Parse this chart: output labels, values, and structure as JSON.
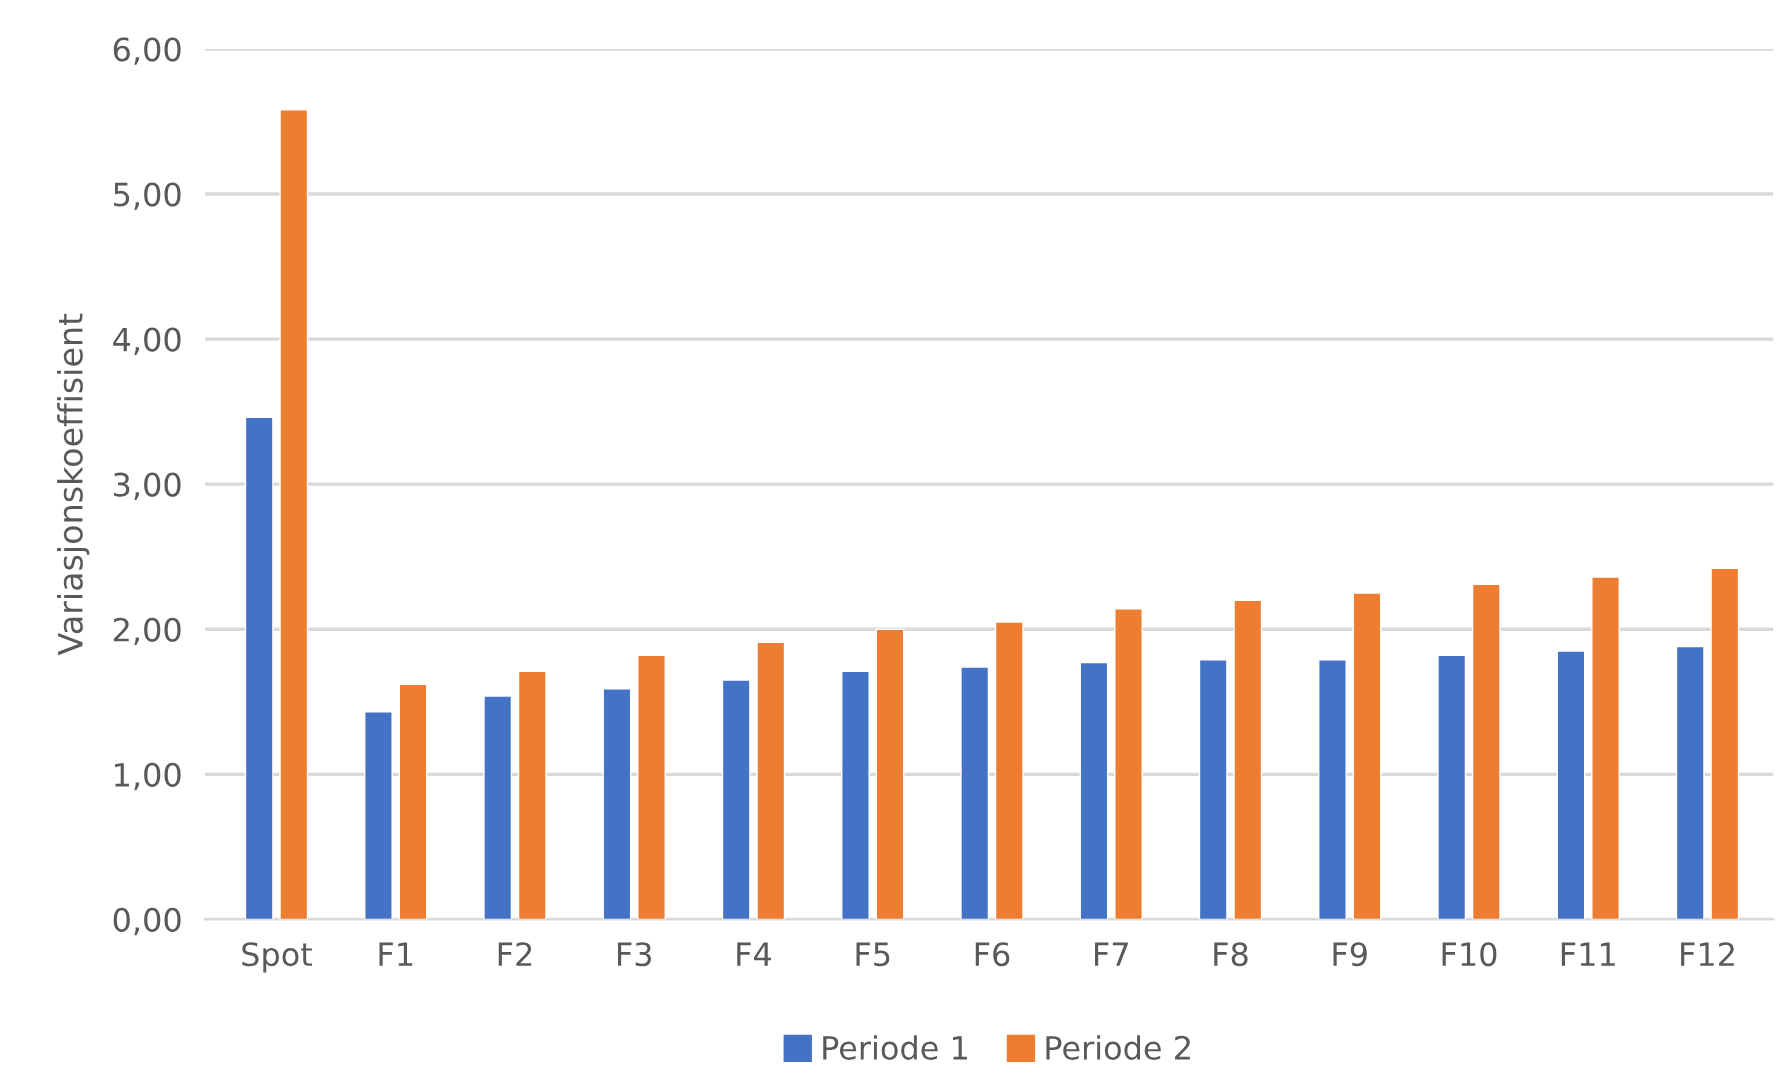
{
  "chart_data": {
    "type": "bar",
    "ylabel": "Variasjonskoeffisient",
    "categories": [
      "Spot",
      "F1",
      "F2",
      "F3",
      "F4",
      "F5",
      "F6",
      "F7",
      "F8",
      "F9",
      "F10",
      "F11",
      "F12"
    ],
    "series": [
      {
        "name": "Periode 1",
        "color": "#4472c4",
        "values": [
          3.46,
          1.43,
          1.54,
          1.59,
          1.65,
          1.71,
          1.74,
          1.77,
          1.79,
          1.79,
          1.82,
          1.85,
          1.88
        ]
      },
      {
        "name": "Periode 2",
        "color": "#ed7d31",
        "values": [
          5.58,
          1.62,
          1.71,
          1.82,
          1.91,
          2.0,
          2.05,
          2.14,
          2.2,
          2.25,
          2.31,
          2.36,
          2.42
        ]
      }
    ],
    "ylim": [
      0,
      6
    ],
    "yticks": [
      {
        "value": 0,
        "label": "0,00"
      },
      {
        "value": 1,
        "label": "1,00"
      },
      {
        "value": 2,
        "label": "2,00"
      },
      {
        "value": 3,
        "label": "3,00"
      },
      {
        "value": 4,
        "label": "4,00"
      },
      {
        "value": 5,
        "label": "5,00"
      },
      {
        "value": 6,
        "label": "6,00"
      }
    ],
    "grid": "y",
    "legend": "bottom"
  }
}
